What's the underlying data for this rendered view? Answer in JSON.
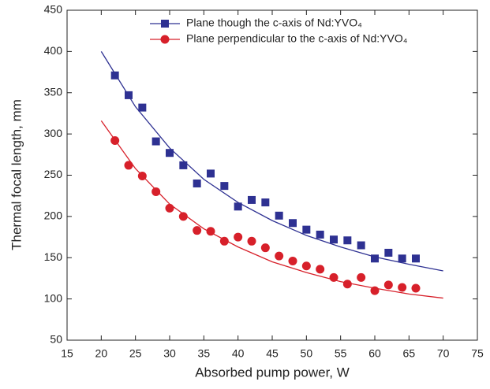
{
  "chart_data": {
    "type": "scatter",
    "x_label": "Absorbed pump power, W",
    "y_label": "Thermal focal length, mm",
    "xlim": [
      15,
      75
    ],
    "xticks": [
      15,
      20,
      25,
      30,
      35,
      40,
      45,
      50,
      55,
      60,
      65,
      70,
      75
    ],
    "ylim": [
      50,
      450
    ],
    "yticks": [
      50,
      100,
      150,
      200,
      250,
      300,
      350,
      400,
      450
    ],
    "grid": false,
    "legend": "top-right",
    "series": [
      {
        "name": "Plane though the c-axis of Nd:YVO₄",
        "color": "#2e3192",
        "marker": "square",
        "x": [
          22,
          24,
          26,
          28,
          30,
          32,
          34,
          36,
          38,
          40,
          42,
          44,
          46,
          48,
          50,
          52,
          54,
          56,
          58,
          60,
          62,
          64,
          66
        ],
        "values": [
          371,
          347,
          332,
          291,
          277,
          262,
          240,
          252,
          237,
          212,
          220,
          217,
          201,
          192,
          184,
          178,
          172,
          171,
          165,
          149,
          156,
          149,
          149
        ],
        "fit": {
          "x": [
            20,
            25,
            30,
            35,
            40,
            45,
            50,
            55,
            60,
            65,
            70
          ],
          "values": [
            400,
            333,
            283,
            245,
            217,
            195,
            177,
            163,
            151,
            142,
            134
          ]
        }
      },
      {
        "name": "Plane perpendicular to the c-axis of Nd:YVO₄",
        "color": "#d7202a",
        "marker": "circle",
        "x": [
          22,
          24,
          26,
          28,
          30,
          32,
          34,
          36,
          38,
          40,
          42,
          44,
          46,
          48,
          50,
          52,
          54,
          56,
          58,
          60,
          62,
          64,
          66
        ],
        "values": [
          292,
          262,
          249,
          230,
          210,
          200,
          183,
          182,
          170,
          175,
          170,
          162,
          152,
          146,
          140,
          136,
          126,
          118,
          126,
          110,
          117,
          114,
          113
        ],
        "fit": {
          "x": [
            20,
            25,
            30,
            35,
            40,
            45,
            50,
            55,
            60,
            65,
            70
          ],
          "values": [
            316,
            258,
            215,
            185,
            163,
            145,
            132,
            121,
            113,
            106,
            101
          ]
        }
      }
    ]
  }
}
